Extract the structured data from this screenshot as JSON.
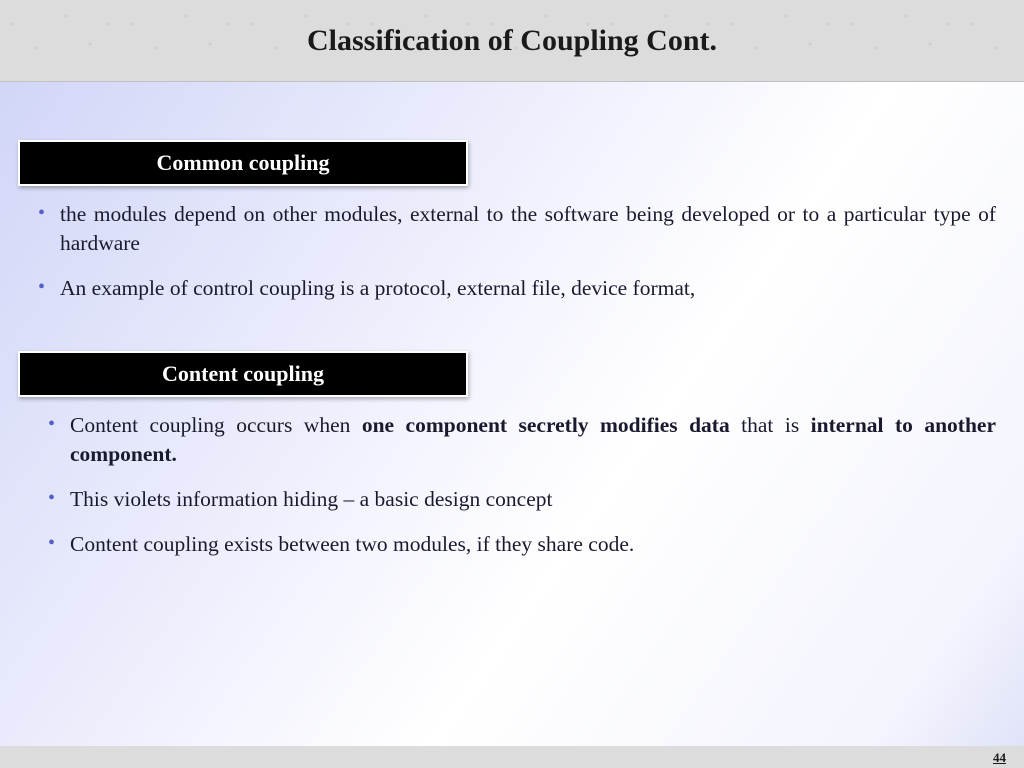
{
  "header": {
    "title": "Classification of Coupling Cont."
  },
  "sections": [
    {
      "heading": "Common coupling",
      "bullets": [
        {
          "text": "the modules depend on other modules, external to the software being developed or to a particular type of hardware"
        },
        {
          "text": "An example of control coupling is a protocol, external file, device format,"
        }
      ]
    },
    {
      "heading": "Content coupling",
      "bullets": [
        {
          "prefix": "Content coupling occurs when ",
          "bold1": "one component secretly modifies data",
          "mid": " that is ",
          "bold2": "internal to another component."
        },
        {
          "text": "This violets information hiding – a basic design concept"
        },
        {
          "text": "Content coupling exists between two modules, if they share code."
        }
      ]
    }
  ],
  "page_number": "44"
}
